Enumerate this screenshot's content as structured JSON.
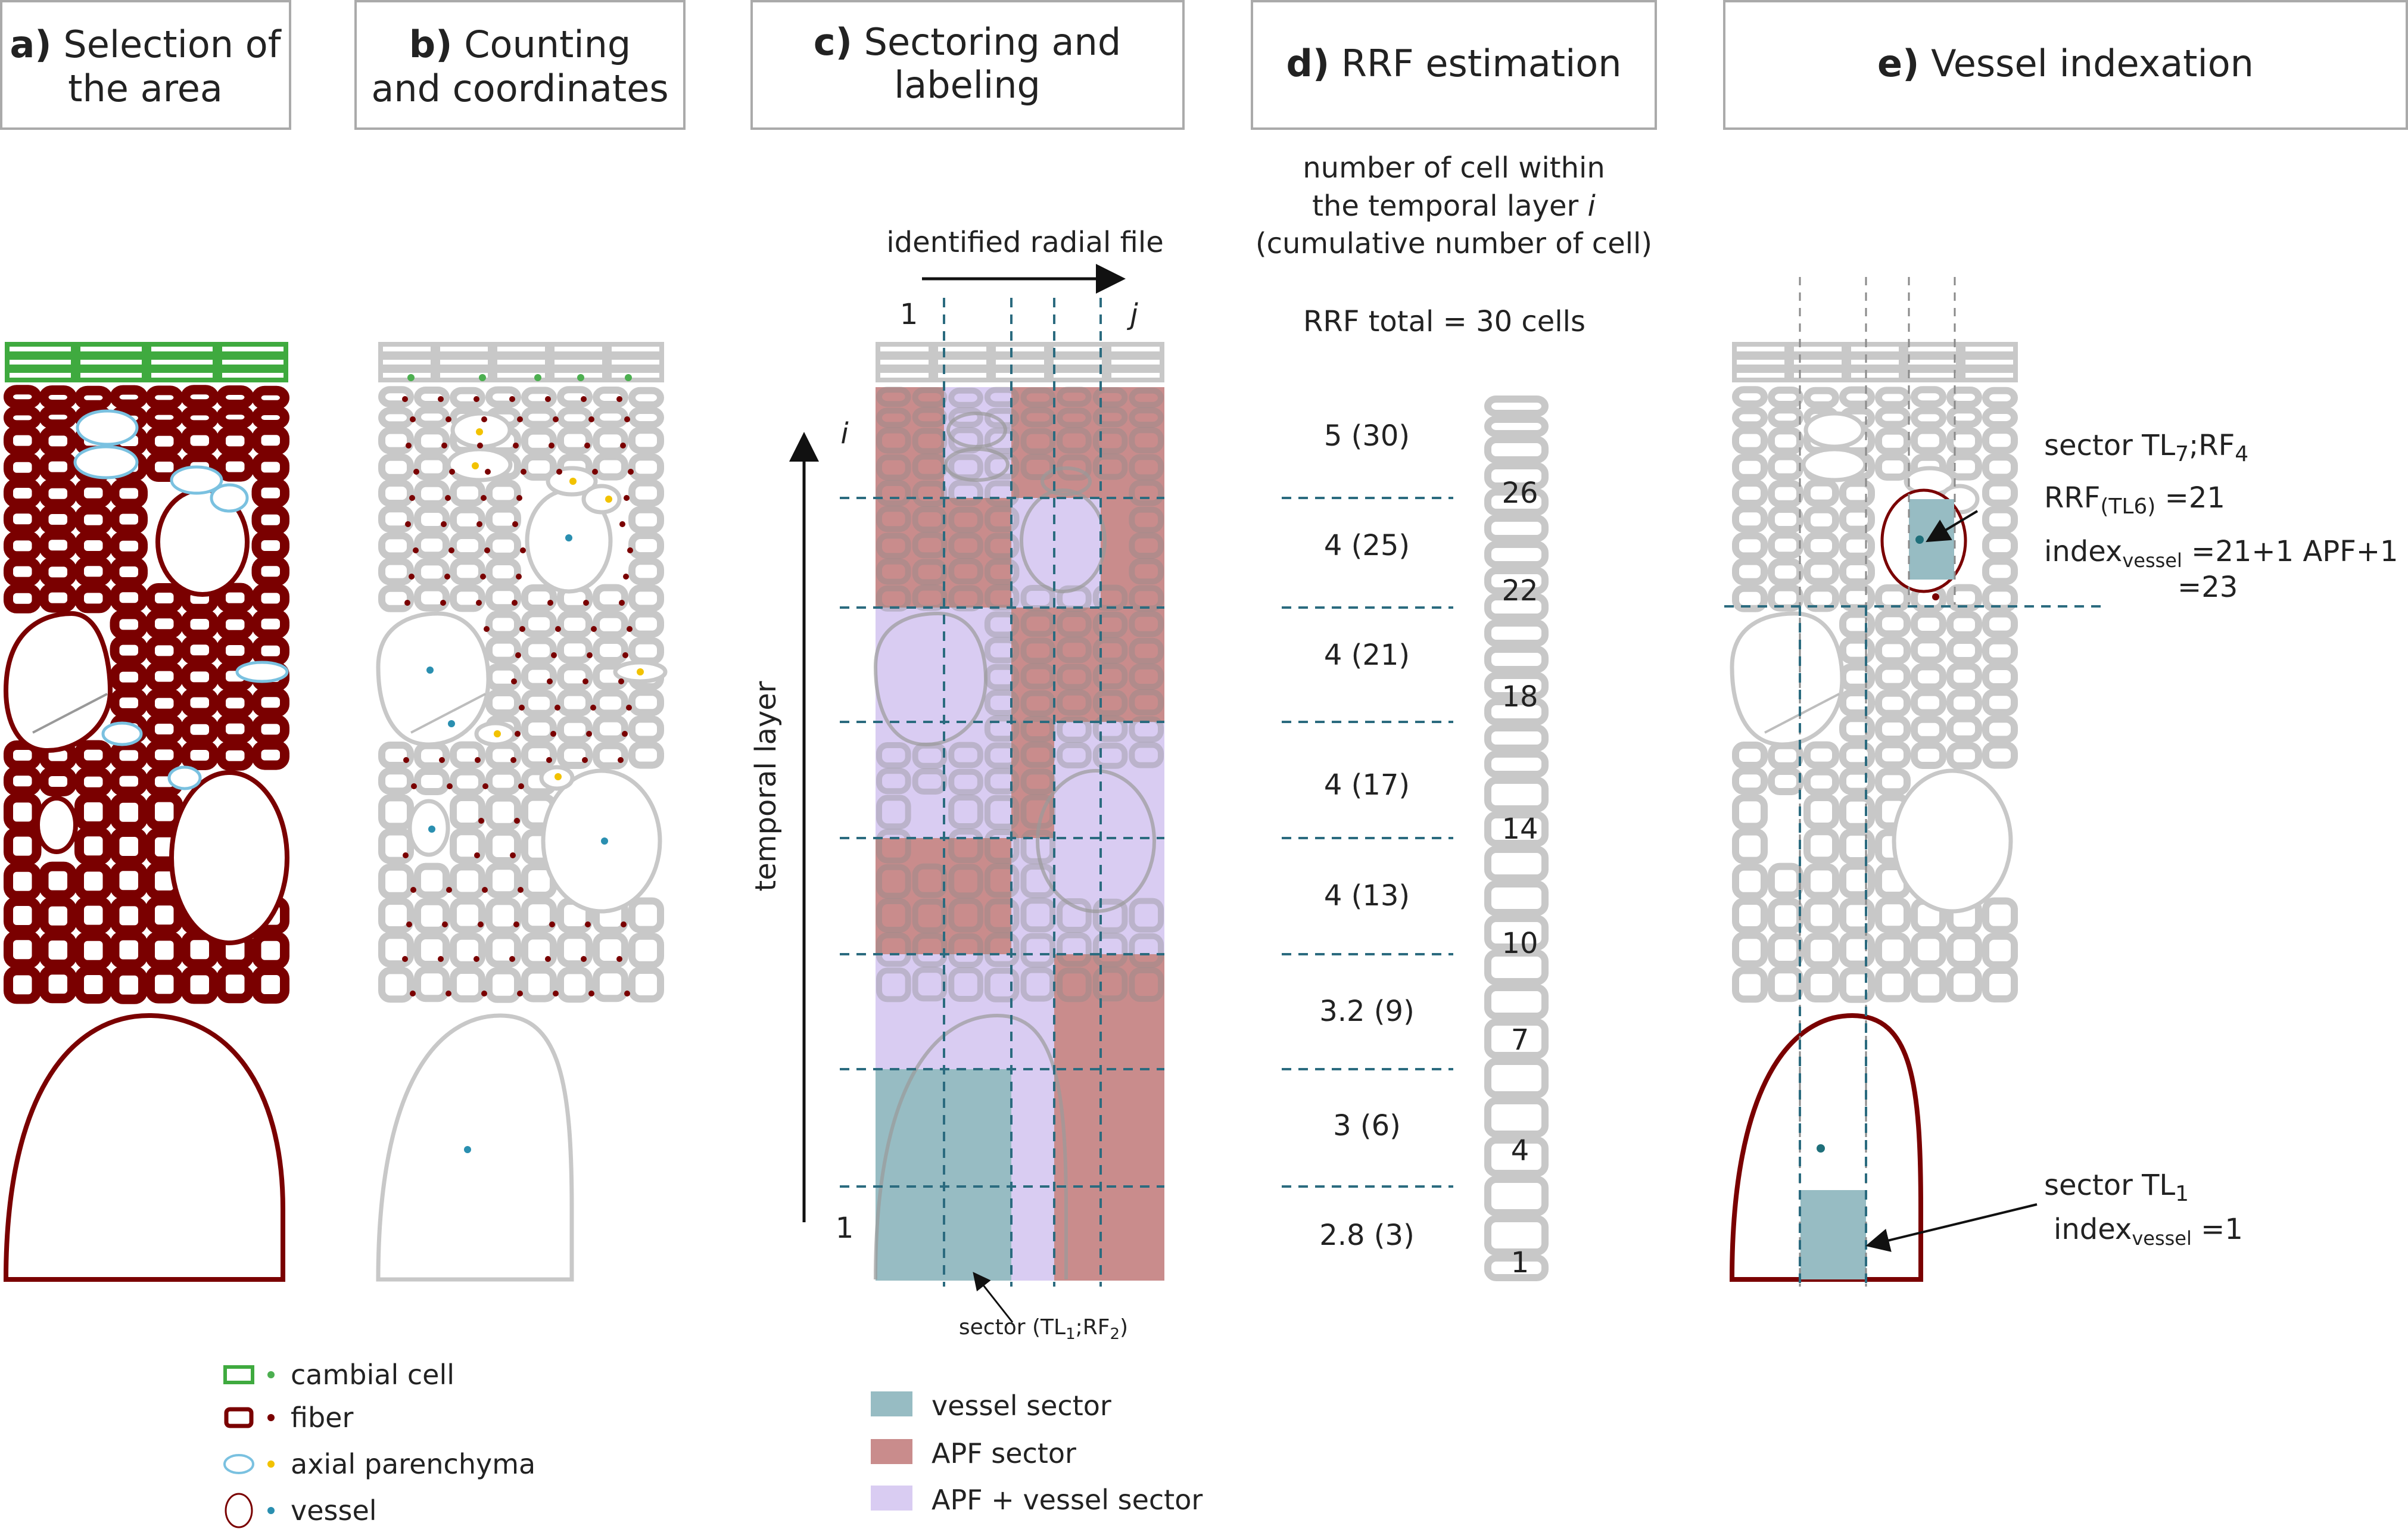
{
  "panels": {
    "a": {
      "letter": "a)",
      "line1": "Selection of",
      "line2": "the area"
    },
    "b": {
      "letter": "b)",
      "line1": "Counting",
      "line2": "and coordinates"
    },
    "c": {
      "letter": "c)",
      "line1": "Sectoring and",
      "line2": "labeling"
    },
    "d": {
      "letter": "d)",
      "line1": "RRF estimation"
    },
    "e": {
      "letter": "e)",
      "line1": "Vessel indexation"
    }
  },
  "panel_c": {
    "radial_file_label": "identified radial file",
    "col_start": "1",
    "col_end": "j",
    "row_top": "i",
    "row_bottom": "1",
    "axis_label": "temporal layer",
    "sector_note_pre": "sector (TL",
    "sector_note_sub1": "1",
    "sector_note_mid": ";RF",
    "sector_note_sub2": "2",
    "sector_note_post": ")"
  },
  "panel_d": {
    "header_line1": "number of cell within",
    "header_line2": "the temporal layer ",
    "header_line2_italic": "i",
    "header_line3": "(cumulative number of cell)",
    "rrf_total": "RRF total = 30 cells",
    "layers": [
      {
        "value": "5 (30)"
      },
      {
        "value": "4 (25)"
      },
      {
        "value": "4 (21)"
      },
      {
        "value": "4 (17)"
      },
      {
        "value": "4 (13)"
      },
      {
        "value": "3.2 (9)"
      },
      {
        "value": "3 (6)"
      },
      {
        "value": "2.8 (3)"
      }
    ],
    "cell_numbers": [
      "26",
      "22",
      "18",
      "14",
      "10",
      "7",
      "4",
      "1"
    ]
  },
  "panel_e": {
    "sector_top_pre": "sector TL",
    "sector_top_sub1": "7",
    "sector_top_mid": ";RF",
    "sector_top_sub2": "4",
    "rrf_pre": "RRF",
    "rrf_sub": "(TL6)",
    "rrf_post": " =21",
    "index_pre": "index",
    "index_sub": "vessel",
    "index_post": " =21+1 APF+1",
    "index_result": "=23",
    "sector_bottom_pre": "sector TL",
    "sector_bottom_sub": "1",
    "index2_pre": "index",
    "index2_sub": "vessel",
    "index2_post": " =1"
  },
  "legend_cells": [
    {
      "label": "cambial cell",
      "color": "#4caf50"
    },
    {
      "label": "fiber",
      "color": "#7a0000"
    },
    {
      "label": "axial parenchyma",
      "color": "#f2c200"
    },
    {
      "label": "vessel",
      "color": "#2a8fb0"
    }
  ],
  "legend_sectors": [
    {
      "label": "vessel sector",
      "color": "#97bcc3"
    },
    {
      "label": "APF sector",
      "color": "#c98c8c"
    },
    {
      "label": "APF + vessel sector",
      "color": "#d9ccf2"
    }
  ]
}
